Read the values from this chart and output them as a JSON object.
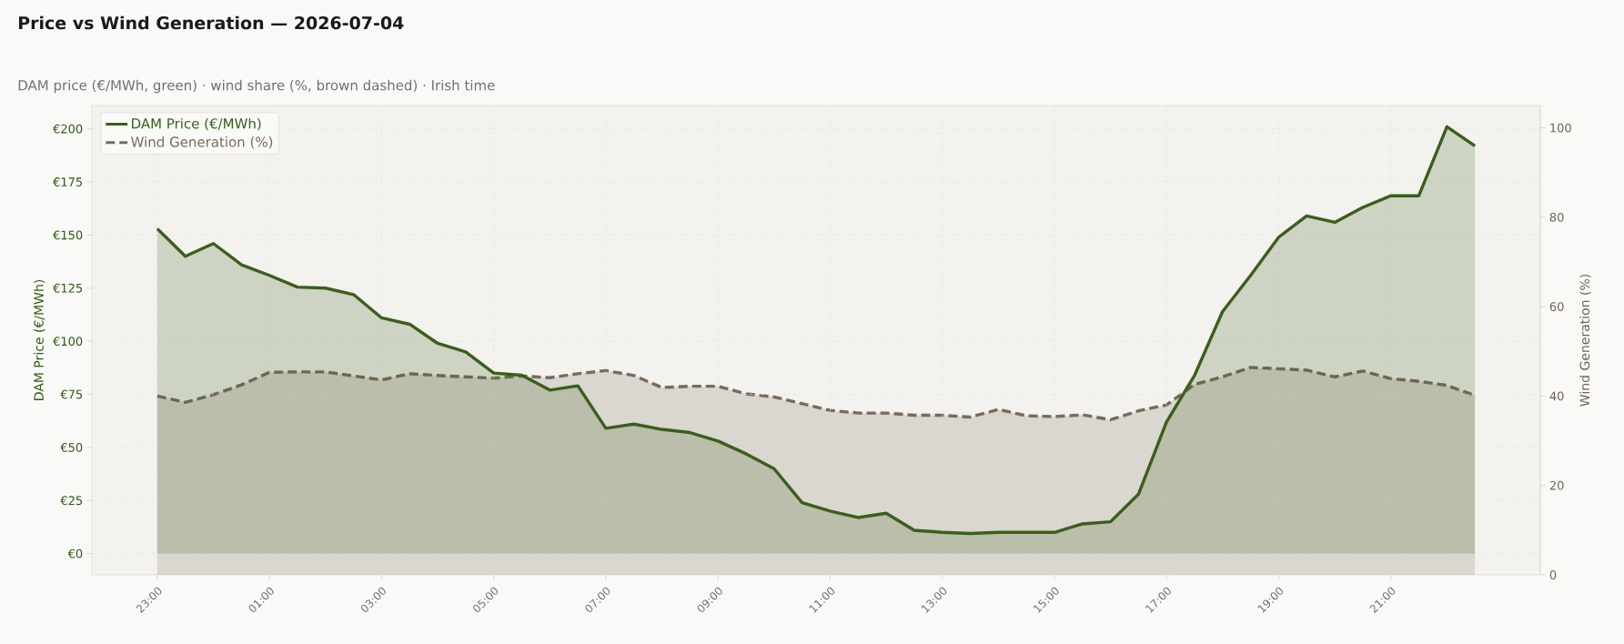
{
  "chart_data": {
    "type": "area",
    "title": "Price vs Wind Generation — 2026-07-04",
    "subtitle": "DAM price (€/MWh, green) · wind share (%, brown dashed) · Irish time",
    "ylabel": "DAM Price (€/MWh)",
    "y2label": "Wind Generation (%)",
    "x": [
      "2026-07-03T23:00",
      "2026-07-03T23:30",
      "2026-07-04T00:00",
      "2026-07-04T00:30",
      "2026-07-04T01:00",
      "2026-07-04T01:30",
      "2026-07-04T02:00",
      "2026-07-04T02:30",
      "2026-07-04T03:00",
      "2026-07-04T03:30",
      "2026-07-04T04:00",
      "2026-07-04T04:30",
      "2026-07-04T05:00",
      "2026-07-04T05:30",
      "2026-07-04T06:00",
      "2026-07-04T06:30",
      "2026-07-04T07:00",
      "2026-07-04T07:30",
      "2026-07-04T08:00",
      "2026-07-04T08:30",
      "2026-07-04T09:00",
      "2026-07-04T09:30",
      "2026-07-04T10:00",
      "2026-07-04T10:30",
      "2026-07-04T11:00",
      "2026-07-04T11:30",
      "2026-07-04T12:00",
      "2026-07-04T12:30",
      "2026-07-04T13:00",
      "2026-07-04T13:30",
      "2026-07-04T14:00",
      "2026-07-04T14:30",
      "2026-07-04T15:00",
      "2026-07-04T15:30",
      "2026-07-04T16:00",
      "2026-07-04T16:30",
      "2026-07-04T17:00",
      "2026-07-04T17:30",
      "2026-07-04T18:00",
      "2026-07-04T18:30",
      "2026-07-04T19:00",
      "2026-07-04T19:30",
      "2026-07-04T20:00",
      "2026-07-04T20:30",
      "2026-07-04T21:00",
      "2026-07-04T21:30",
      "2026-07-04T22:00",
      "2026-07-04T22:30"
    ],
    "series": [
      {
        "name": "DAM Price (€/MWh)",
        "color": "#3a5f1a",
        "line_style": "solid",
        "axis": "y",
        "values": [
          153,
          140,
          146,
          136,
          131,
          125.5,
          125,
          122,
          111,
          108,
          99,
          95,
          85,
          84,
          77,
          79,
          59,
          61,
          58.5,
          57,
          53,
          47,
          40,
          24,
          20,
          17,
          19,
          11,
          10,
          9.5,
          10,
          10,
          10,
          14,
          15,
          28,
          62,
          84,
          114,
          131,
          149,
          159,
          156,
          163,
          168.5,
          168.5,
          201,
          192
        ]
      },
      {
        "name": "Wind Generation (%)",
        "color": "#7a6a5a",
        "line_style": "dashed",
        "axis": "y2",
        "values": [
          40,
          38.6,
          40.3,
          42.5,
          45.3,
          45.4,
          45.4,
          44.5,
          43.6,
          45,
          44.6,
          44.3,
          44,
          44.5,
          44.1,
          45,
          45.7,
          44.6,
          41.9,
          42.2,
          42.2,
          40.5,
          39.8,
          38.3,
          36.8,
          36.2,
          36.2,
          35.7,
          35.7,
          35.3,
          37,
          35.6,
          35.4,
          35.8,
          34.7,
          36.7,
          38,
          42.6,
          44.3,
          46.4,
          46.1,
          45.8,
          44.3,
          45.6,
          43.9,
          43.3,
          42.4,
          40.1
        ]
      }
    ],
    "xlim": [
      "2026-07-03T21:50",
      "2026-07-04T23:40"
    ],
    "xticks": [
      {
        "value": "2026-07-03T23:00",
        "label": "23:00"
      },
      {
        "value": "2026-07-04T01:00",
        "label": "01:00"
      },
      {
        "value": "2026-07-04T03:00",
        "label": "03:00"
      },
      {
        "value": "2026-07-04T05:00",
        "label": "05:00"
      },
      {
        "value": "2026-07-04T07:00",
        "label": "07:00"
      },
      {
        "value": "2026-07-04T09:00",
        "label": "09:00"
      },
      {
        "value": "2026-07-04T11:00",
        "label": "11:00"
      },
      {
        "value": "2026-07-04T13:00",
        "label": "13:00"
      },
      {
        "value": "2026-07-04T15:00",
        "label": "15:00"
      },
      {
        "value": "2026-07-04T17:00",
        "label": "17:00"
      },
      {
        "value": "2026-07-04T19:00",
        "label": "19:00"
      },
      {
        "value": "2026-07-04T21:00",
        "label": "21:00"
      }
    ],
    "ylim": [
      -10,
      211
    ],
    "yticks": [
      {
        "value": 0,
        "label": "€0"
      },
      {
        "value": 25,
        "label": "€25"
      },
      {
        "value": 50,
        "label": "€50"
      },
      {
        "value": 75,
        "label": "€75"
      },
      {
        "value": 100,
        "label": "€100"
      },
      {
        "value": 125,
        "label": "€125"
      },
      {
        "value": 150,
        "label": "€150"
      },
      {
        "value": 175,
        "label": "€175"
      },
      {
        "value": 200,
        "label": "€200"
      }
    ],
    "y2lim": [
      0,
      105
    ],
    "y2ticks": [
      0,
      20,
      40,
      60,
      80,
      100
    ],
    "grid": true,
    "legend": "top left",
    "marker": "none"
  }
}
